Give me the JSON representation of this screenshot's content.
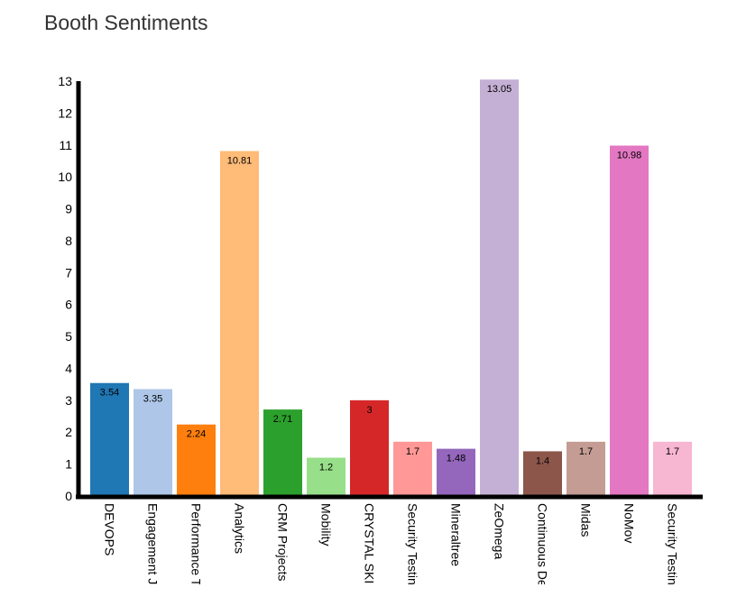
{
  "chart_data": {
    "type": "bar",
    "title": "Booth Sentiments",
    "xlabel": "",
    "ylabel": "",
    "ylim": [
      0,
      13
    ],
    "yticks": [
      0,
      1,
      2,
      3,
      4,
      5,
      6,
      7,
      8,
      9,
      10,
      11,
      12,
      13
    ],
    "grid": false,
    "categories": [
      "DEVOPS",
      "Engagement J",
      "Performance T",
      "Analytics",
      "CRM Projects",
      "Mobility",
      "CRYSTAL SKI",
      "Security Testin",
      "Mineraltree",
      "ZeOmega",
      "Continuous De",
      "Midas",
      "NoMov",
      "Security Testin"
    ],
    "values": [
      3.54,
      3.35,
      2.24,
      10.81,
      2.71,
      1.2,
      3,
      1.7,
      1.48,
      13.05,
      1.4,
      1.7,
      10.98,
      1.7
    ],
    "value_labels": [
      "3.54",
      "3.35",
      "2.24",
      "10.81",
      "2.71",
      "1.2",
      "3",
      "1.7",
      "1.48",
      "13.05",
      "1.4",
      "1.7",
      "10.98",
      "1.7"
    ],
    "colors": [
      "#1f77b4",
      "#aec7e8",
      "#ff7f0e",
      "#ffbb78",
      "#2ca02c",
      "#98df8a",
      "#d62728",
      "#ff9896",
      "#9467bd",
      "#c5b0d5",
      "#8c564b",
      "#c49c94",
      "#e377c2",
      "#f7b6d2"
    ]
  }
}
